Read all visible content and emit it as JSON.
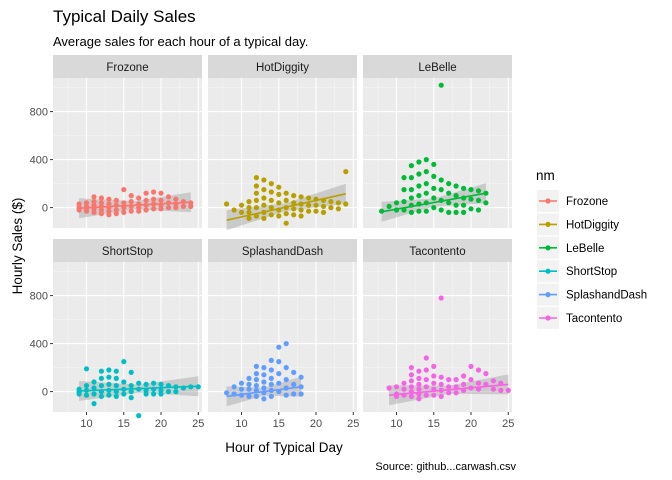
{
  "chart_data": {
    "type": "scatter",
    "title": "Typical Daily Sales",
    "subtitle": "Average sales for each hour of a typical day.",
    "xlabel": "Hour of Typical Day",
    "ylabel": "Hourly Sales ($)",
    "caption": "Source: github...carwash.csv",
    "xlim": [
      5.5,
      25.5
    ],
    "ylim": [
      -170,
      1080
    ],
    "xticks": [
      10,
      15,
      20,
      25
    ],
    "yticks": [
      0,
      400,
      800
    ],
    "grid": true,
    "facets": [
      "Frozone",
      "HotDiggity",
      "LeBelle",
      "ShortStop",
      "SplashandDash",
      "Tacontento"
    ],
    "legend": {
      "title": "nm",
      "position": "right",
      "entries": [
        "Frozone",
        "HotDiggity",
        "LeBelle",
        "ShortStop",
        "SplashandDash",
        "Tacontento"
      ]
    },
    "colors": {
      "Frozone": "#F8766D",
      "HotDiggity": "#B79F00",
      "LeBelle": "#00BA38",
      "ShortStop": "#00BFC4",
      "SplashandDash": "#619CFF",
      "Tacontento": "#F564E3"
    },
    "series": [
      {
        "name": "Frozone",
        "x": [
          9,
          9,
          9,
          10,
          10,
          10,
          10,
          11,
          11,
          11,
          11,
          11,
          12,
          12,
          12,
          12,
          12,
          13,
          13,
          13,
          13,
          13,
          14,
          14,
          14,
          14,
          15,
          15,
          15,
          15,
          16,
          16,
          16,
          16,
          17,
          17,
          17,
          17,
          18,
          18,
          18,
          18,
          19,
          19,
          19,
          19,
          20,
          20,
          20,
          20,
          21,
          21,
          21,
          22,
          22,
          22,
          23,
          23,
          24,
          24
        ],
        "y": [
          30,
          0,
          -20,
          40,
          10,
          -10,
          -30,
          90,
          50,
          20,
          -10,
          -40,
          80,
          40,
          10,
          -20,
          -50,
          70,
          30,
          0,
          -30,
          -60,
          60,
          20,
          -20,
          -50,
          150,
          40,
          0,
          -40,
          100,
          50,
          10,
          -30,
          80,
          30,
          0,
          -30,
          120,
          60,
          20,
          -20,
          130,
          70,
          30,
          -10,
          120,
          60,
          20,
          -10,
          90,
          40,
          0,
          70,
          30,
          0,
          50,
          10,
          40,
          10
        ],
        "trend": {
          "x0": 9,
          "y0": -5,
          "x1": 24,
          "y1": 45
        }
      },
      {
        "name": "HotDiggity",
        "x": [
          8,
          9,
          10,
          10,
          11,
          11,
          11,
          11,
          12,
          12,
          12,
          12,
          12,
          12,
          13,
          13,
          13,
          13,
          13,
          13,
          14,
          14,
          14,
          14,
          14,
          15,
          15,
          15,
          15,
          15,
          16,
          16,
          16,
          16,
          16,
          17,
          17,
          17,
          17,
          18,
          18,
          18,
          18,
          19,
          19,
          19,
          20,
          20,
          20,
          21,
          21,
          21,
          22,
          22,
          23,
          23,
          24,
          24
        ],
        "y": [
          30,
          -20,
          -40,
          20,
          50,
          0,
          -40,
          -90,
          250,
          180,
          120,
          60,
          0,
          -70,
          230,
          150,
          80,
          20,
          -40,
          -90,
          200,
          130,
          60,
          0,
          -60,
          170,
          110,
          40,
          -20,
          -70,
          120,
          60,
          0,
          -50,
          -130,
          100,
          40,
          -10,
          -60,
          90,
          30,
          -20,
          -70,
          80,
          20,
          -30,
          70,
          20,
          -30,
          60,
          10,
          -40,
          50,
          0,
          40,
          -10,
          300,
          30
        ],
        "trend": {
          "x0": 8,
          "y0": -105,
          "x1": 24,
          "y1": 115
        }
      },
      {
        "name": "LeBelle",
        "x": [
          8,
          9,
          10,
          10,
          11,
          11,
          11,
          11,
          12,
          12,
          12,
          12,
          12,
          12,
          13,
          13,
          13,
          13,
          13,
          13,
          14,
          14,
          14,
          14,
          14,
          14,
          15,
          15,
          15,
          15,
          15,
          16,
          16,
          16,
          16,
          16,
          17,
          17,
          17,
          17,
          18,
          18,
          18,
          18,
          19,
          19,
          19,
          19,
          20,
          20,
          20,
          21,
          21,
          21,
          22,
          22
        ],
        "y": [
          -30,
          10,
          40,
          -20,
          250,
          150,
          50,
          -20,
          350,
          250,
          150,
          80,
          20,
          -40,
          380,
          280,
          180,
          100,
          30,
          -30,
          400,
          300,
          200,
          120,
          40,
          -30,
          360,
          260,
          160,
          80,
          0,
          1020,
          230,
          150,
          60,
          -20,
          200,
          120,
          40,
          -40,
          180,
          100,
          20,
          -40,
          160,
          80,
          20,
          -40,
          150,
          70,
          -10,
          140,
          60,
          -20,
          120,
          40
        ],
        "trend": {
          "x0": 8,
          "y0": -35,
          "x1": 22,
          "y1": 120
        }
      },
      {
        "name": "ShortStop",
        "x": [
          9,
          9,
          9,
          10,
          10,
          10,
          10,
          11,
          11,
          11,
          11,
          12,
          12,
          12,
          12,
          12,
          13,
          13,
          13,
          13,
          13,
          14,
          14,
          14,
          14,
          14,
          15,
          15,
          15,
          15,
          16,
          16,
          16,
          16,
          17,
          17,
          17,
          18,
          18,
          18,
          19,
          19,
          19,
          20,
          20,
          20,
          21,
          21,
          22,
          22,
          23,
          24,
          25
        ],
        "y": [
          0,
          20,
          -20,
          190,
          50,
          10,
          -30,
          80,
          30,
          -20,
          -100,
          170,
          110,
          50,
          0,
          -40,
          180,
          120,
          60,
          10,
          -30,
          170,
          110,
          50,
          0,
          -40,
          250,
          80,
          20,
          -20,
          160,
          50,
          0,
          -50,
          70,
          20,
          -200,
          60,
          10,
          -20,
          70,
          20,
          -20,
          60,
          10,
          -20,
          50,
          0,
          40,
          0,
          30,
          40,
          40
        ],
        "trend": {
          "x0": 9,
          "y0": 5,
          "x1": 25,
          "y1": 45
        }
      },
      {
        "name": "SplashandDash",
        "x": [
          8,
          9,
          9,
          10,
          10,
          10,
          11,
          11,
          11,
          11,
          12,
          12,
          12,
          12,
          12,
          12,
          13,
          13,
          13,
          13,
          13,
          13,
          14,
          14,
          14,
          14,
          14,
          14,
          15,
          15,
          15,
          15,
          15,
          16,
          16,
          16,
          16,
          16,
          17,
          17,
          17,
          18,
          18,
          18
        ],
        "y": [
          -10,
          40,
          -20,
          70,
          20,
          -30,
          110,
          60,
          20,
          -40,
          210,
          150,
          100,
          50,
          10,
          -40,
          200,
          140,
          80,
          30,
          -10,
          -60,
          260,
          180,
          110,
          60,
          10,
          -40,
          370,
          250,
          150,
          70,
          0,
          400,
          200,
          100,
          30,
          -30,
          160,
          60,
          -20,
          120,
          40,
          -20
        ],
        "trend": {
          "x0": 8,
          "y0": -40,
          "x1": 18,
          "y1": 40
        }
      },
      {
        "name": "Tacontento",
        "x": [
          9,
          10,
          10,
          10,
          11,
          11,
          11,
          12,
          12,
          12,
          12,
          12,
          12,
          13,
          13,
          13,
          13,
          13,
          13,
          14,
          14,
          14,
          14,
          14,
          15,
          15,
          15,
          15,
          15,
          16,
          16,
          16,
          16,
          16,
          17,
          17,
          17,
          18,
          18,
          18,
          19,
          19,
          19,
          20,
          20,
          20,
          21,
          21,
          21,
          22,
          22,
          23,
          23,
          24,
          24,
          25
        ],
        "y": [
          30,
          -20,
          -40,
          40,
          70,
          20,
          -30,
          200,
          140,
          90,
          40,
          0,
          -40,
          170,
          110,
          60,
          20,
          -20,
          -60,
          280,
          180,
          100,
          40,
          -30,
          210,
          130,
          70,
          20,
          -30,
          780,
          120,
          60,
          10,
          -40,
          100,
          40,
          -10,
          100,
          40,
          -10,
          130,
          60,
          10,
          210,
          100,
          30,
          180,
          70,
          20,
          150,
          60,
          90,
          20,
          70,
          10,
          10
        ],
        "trend": {
          "x0": 9,
          "y0": -30,
          "x1": 25,
          "y1": 60
        }
      }
    ]
  }
}
